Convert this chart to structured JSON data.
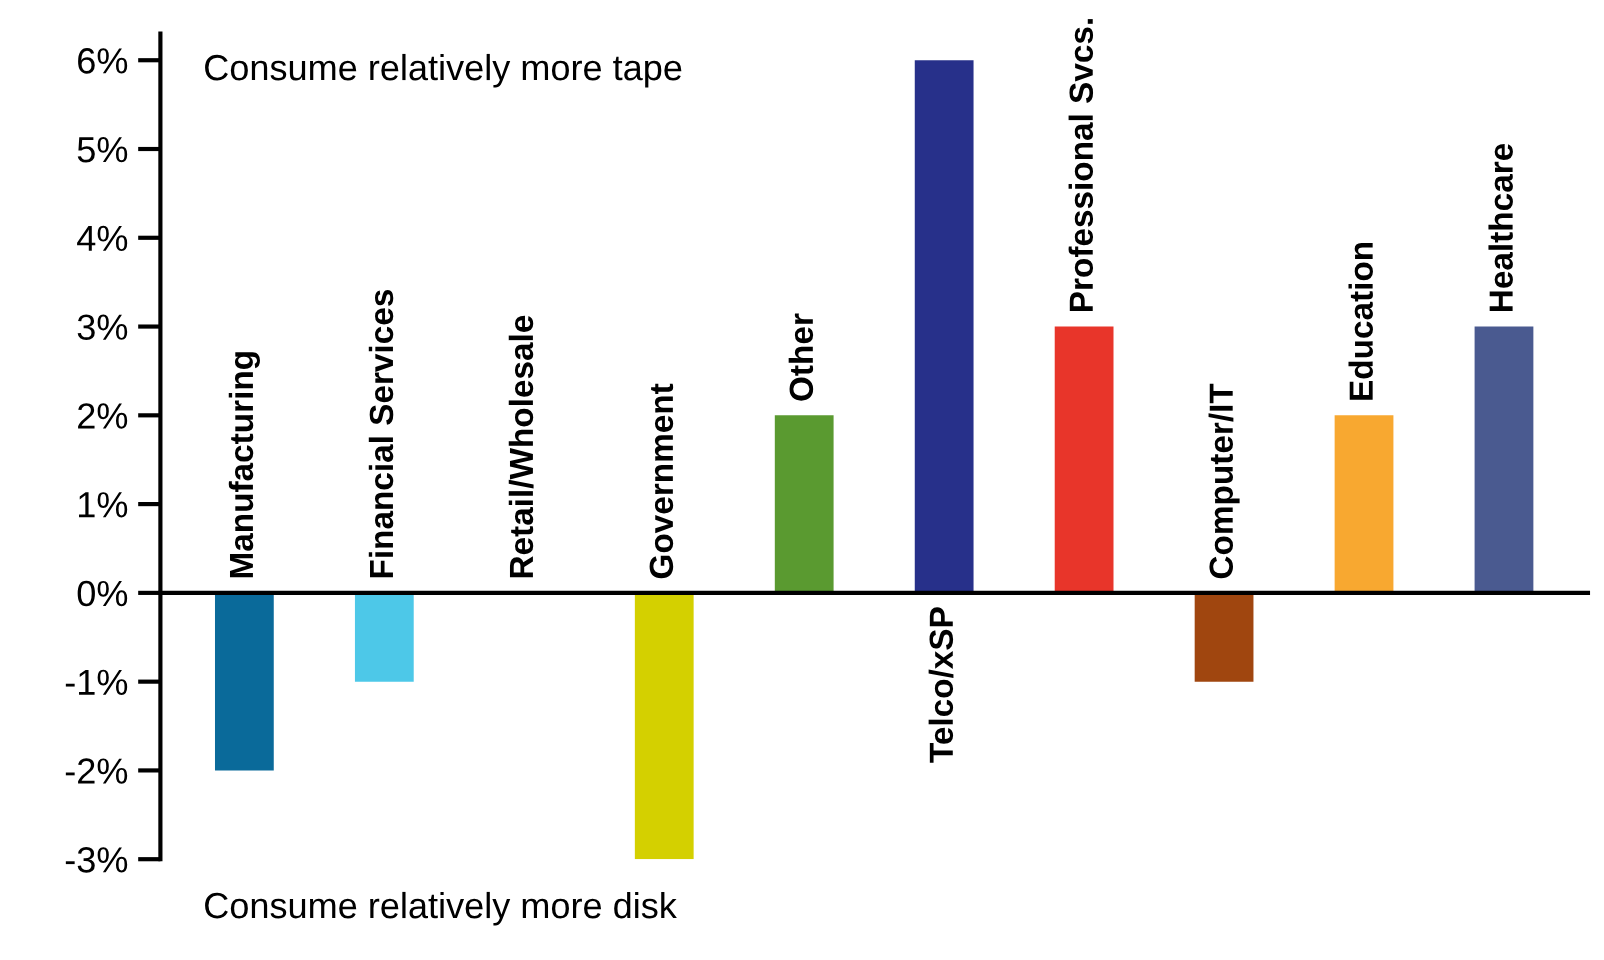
{
  "chart_data": {
    "type": "bar",
    "categories": [
      "Manufacturing",
      "Financial Services",
      "Retail/Wholesale",
      "Government",
      "Other",
      "Telco/xSP",
      "Professional Svcs.",
      "Computer/IT",
      "Education",
      "Healthcare"
    ],
    "values": [
      -2,
      -1,
      0,
      -3,
      2,
      6,
      3,
      -1,
      2,
      3
    ],
    "colors": [
      "#0a6a9a",
      "#4dc8e8",
      "#ffffff",
      "#d4d000",
      "#5a9a30",
      "#27308a",
      "#e8352a",
      "#a0460f",
      "#f8a830",
      "#4a5a90"
    ],
    "ylim": [
      -3,
      6.3
    ],
    "yticks": [
      {
        "value": -3,
        "label": "-3%"
      },
      {
        "value": -2,
        "label": "-2%"
      },
      {
        "value": -1,
        "label": "-1%"
      },
      {
        "value": 0,
        "label": "0%"
      },
      {
        "value": 1,
        "label": "1%"
      },
      {
        "value": 2,
        "label": "2%"
      },
      {
        "value": 3,
        "label": "3%"
      },
      {
        "value": 4,
        "label": "4%"
      },
      {
        "value": 5,
        "label": "5%"
      },
      {
        "value": 6,
        "label": "6%"
      }
    ],
    "annotations": [
      "Consume relatively more tape",
      "Consume relatively more disk"
    ],
    "grid": false,
    "legend": false
  }
}
